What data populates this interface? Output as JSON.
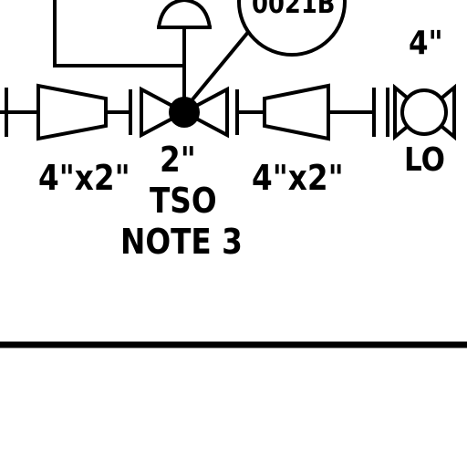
{
  "diagram": {
    "instrument_tag": "0021B",
    "valve_size": "2\"",
    "valve_type": "TSO",
    "valve_note": "NOTE 3",
    "reducer_left": "4\"x2\"",
    "reducer_right": "4\"x2\"",
    "line_size": "4\"",
    "lock_status": "LO"
  },
  "colors": {
    "line": "#000000",
    "background": "#ffffff"
  }
}
